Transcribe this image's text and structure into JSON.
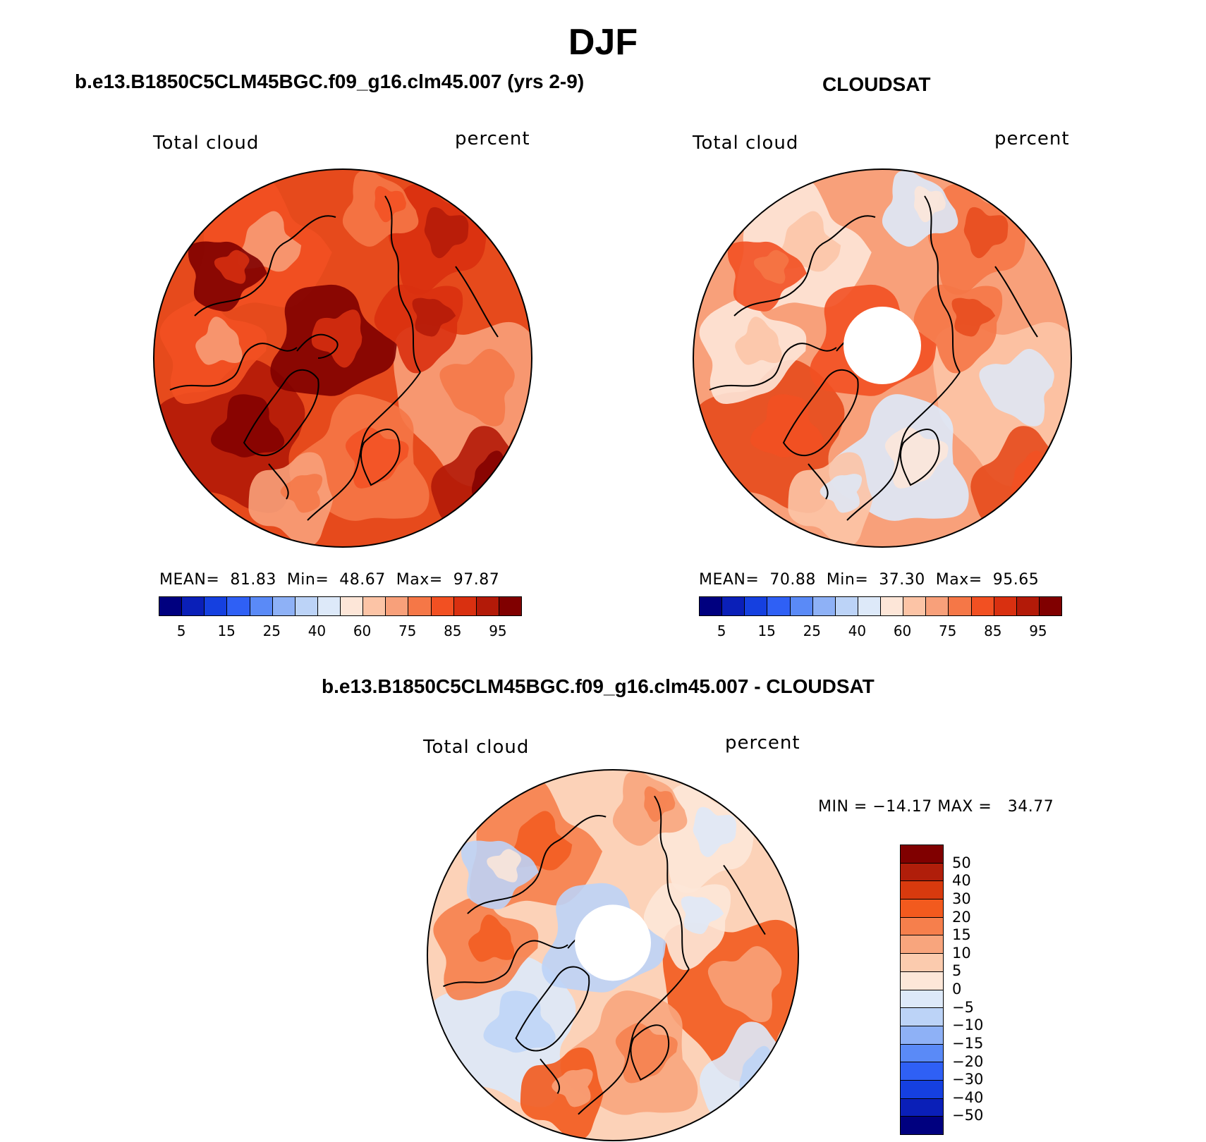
{
  "main_title": "DJF",
  "colors": {
    "abs_scale": [
      "#00007f",
      "#0a1fb8",
      "#1540e0",
      "#2f60f5",
      "#5a8af7",
      "#8eb1f6",
      "#bcd3f7",
      "#dde9f9",
      "#fde6d8",
      "#fcc4a6",
      "#f8a07a",
      "#f57747",
      "#f25022",
      "#d93010",
      "#b31a08",
      "#800000"
    ],
    "diff_scale": [
      "#800000",
      "#b01e0a",
      "#d83a0e",
      "#f25a1e",
      "#f67f4c",
      "#f8a57d",
      "#fbcbae",
      "#fde7d8",
      "#dde9f9",
      "#bcd3f7",
      "#8eb1f6",
      "#5a8af7",
      "#2f60f5",
      "#1540e0",
      "#0a1fb8",
      "#00007f"
    ],
    "coast": "#000000"
  },
  "panels": [
    {
      "title": "b.e13.B1850C5CLM45BGC.f09_g16.clm45.007 (yrs 2-9)",
      "left_label": "Total cloud",
      "right_label": "percent",
      "stats": {
        "mean_label": "MEAN=",
        "mean": "81.83",
        "min_label": "Min=",
        "min": "48.67",
        "max_label": "Max=",
        "max": "97.87"
      },
      "ticks": [
        "5",
        "15",
        "25",
        "40",
        "60",
        "75",
        "85",
        "95"
      ]
    },
    {
      "title": "CLOUDSAT",
      "left_label": "Total cloud",
      "right_label": "percent",
      "stats": {
        "mean_label": "MEAN=",
        "mean": "70.88",
        "min_label": "Min=",
        "min": "37.30",
        "max_label": "Max=",
        "max": "95.65"
      },
      "ticks": [
        "5",
        "15",
        "25",
        "40",
        "60",
        "75",
        "85",
        "95"
      ]
    },
    {
      "title": "b.e13.B1850C5CLM45BGC.f09_g16.clm45.007 - CLOUDSAT",
      "left_label": "Total cloud",
      "right_label": "percent",
      "minmax": "MIN = −14.17 MAX =   34.77",
      "ticks": [
        "50",
        "40",
        "30",
        "20",
        "15",
        "10",
        "5",
        "0",
        "−5",
        "−10",
        "−15",
        "−20",
        "−30",
        "−40",
        "−50"
      ]
    }
  ]
}
